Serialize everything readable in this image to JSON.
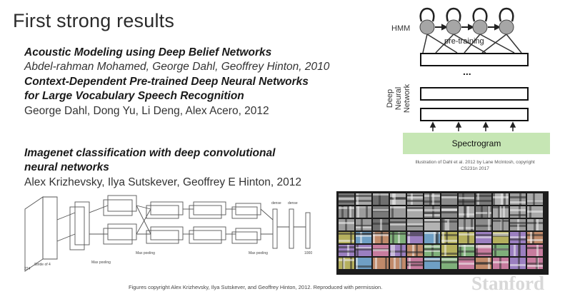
{
  "slide": {
    "title": "First strong results"
  },
  "refs": {
    "paper1_title": "Acoustic Modeling using Deep Belief Networks",
    "paper1_authors": "Abdel-rahman Mohamed, George Dahl, Geoffrey Hinton, 2010",
    "paper2_title_line1": "Context-Dependent Pre-trained Deep Neural Networks",
    "paper2_title_line2": "for Large Vocabulary Speech Recognition",
    "paper2_authors": "George Dahl, Dong Yu, Li Deng, Alex Acero, 2012",
    "paper3_title_line1": "Imagenet classification with deep convolutional",
    "paper3_title_line2": "neural networks",
    "paper3_authors": "Alex Krizhevsky, Ilya Sutskever, Geoffrey E Hinton, 2012"
  },
  "dnn_figure": {
    "hmm_label": "HMM",
    "pretraining_label": "pre-training",
    "ellipsis": "...",
    "side_label": "Deep Neural Network",
    "spectrogram_label": "Spectrogram",
    "caption_line1": "Illustration of Dahl et al. 2012 by Lane McIntosh, copyright",
    "caption_line2": "CS231n 2017",
    "colors": {
      "spectrogram_fill": "#c6e6b4",
      "hmm_node": "#a6a6a6"
    }
  },
  "alexnet_figure": {
    "labels": [
      "Max pooling",
      "Max pooling",
      "Max pooling",
      "dense",
      "dense",
      "Stride of 4",
      "224",
      "1000"
    ]
  },
  "footer": {
    "figure_caption": "Figures copyright Alex Krizhevsky, Ilya Sutskever, and Geoffrey Hinton, 2012. Reproduced with permission.",
    "watermark": "Stanford"
  }
}
